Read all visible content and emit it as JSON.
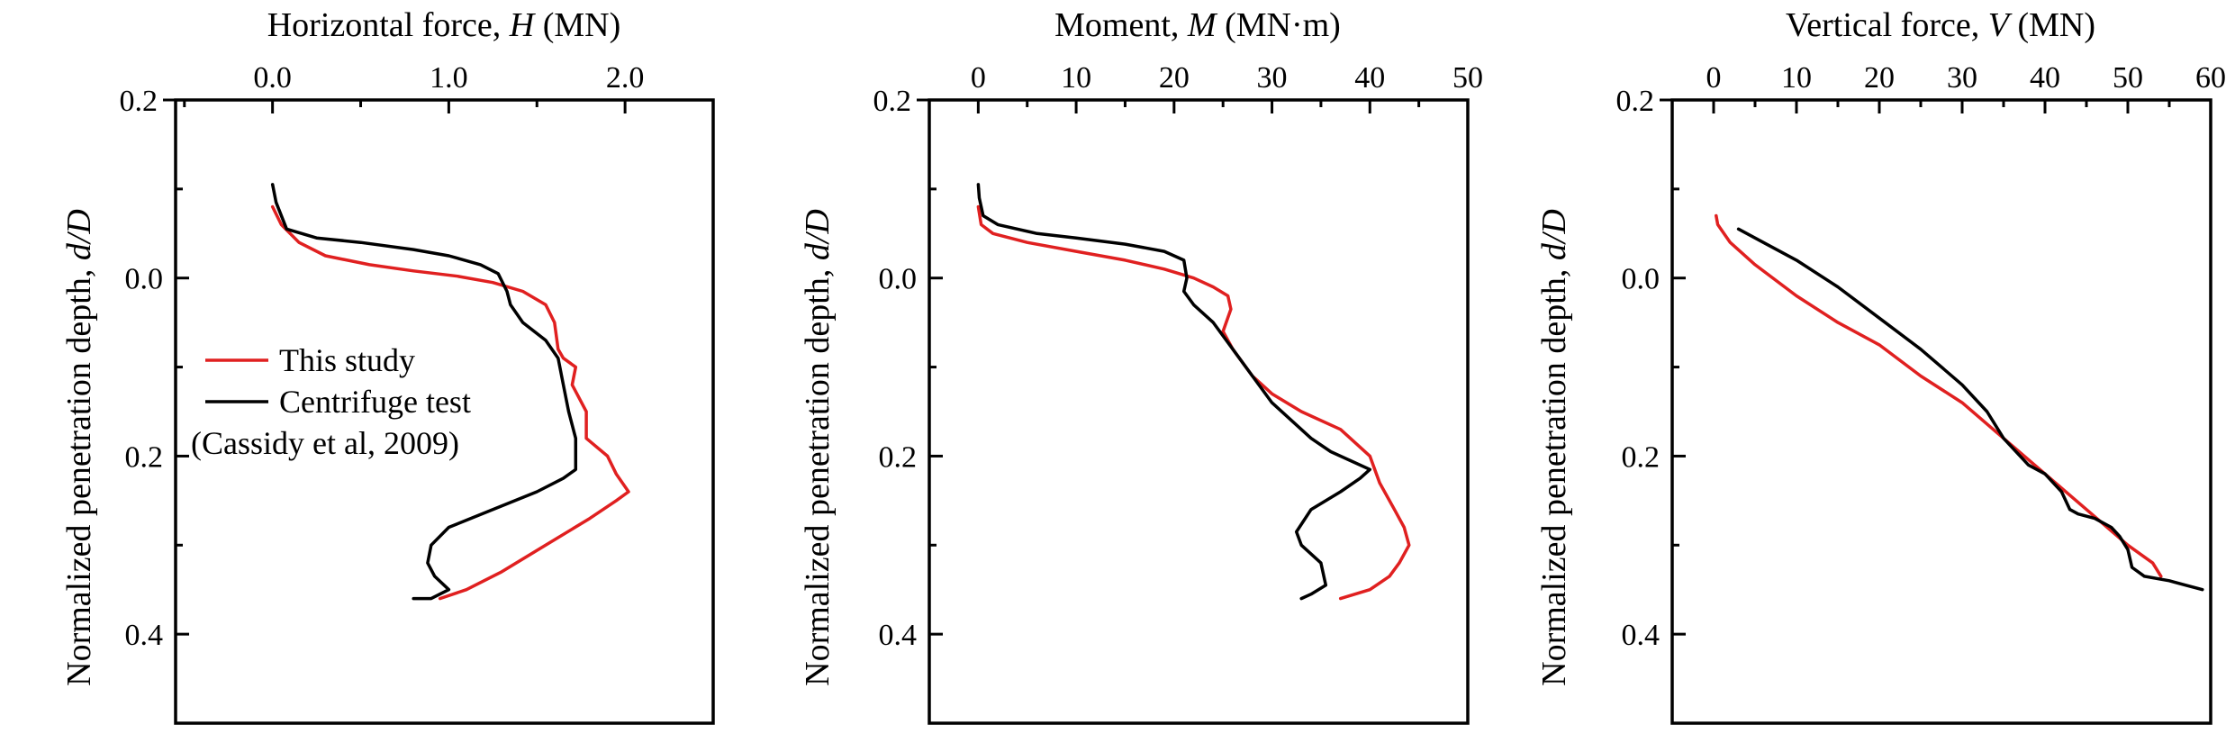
{
  "chart_data": [
    {
      "type": "line",
      "xlabel_prefix": "Horizontal force, ",
      "xlabel_var": "H",
      "xlabel_unit": " (MN)",
      "ylabel_prefix": "Normalized penetration depth, ",
      "ylabel_var": "d/D",
      "xlim": [
        -0.55,
        2.5
      ],
      "ylim": [
        -0.2,
        0.5
      ],
      "y_inverted": true,
      "x_ticks": [
        0.0,
        1.0,
        2.0
      ],
      "x_tick_labels": [
        "0.0",
        "1.0",
        "2.0"
      ],
      "x_minor_step": 0.5,
      "y_ticks": [
        -0.2,
        0.0,
        0.2,
        0.4
      ],
      "y_tick_labels": [
        "0.2",
        "0.0",
        "0.2",
        "0.4"
      ],
      "y_minor_step": 0.1,
      "legend": {
        "placement": "center-left",
        "entries": [
          "This study",
          "Centrifuge test",
          "(Cassidy et al, 2009)"
        ]
      },
      "series": [
        {
          "name": "This study",
          "color": "#e02020",
          "x": [
            0.0,
            0.05,
            0.15,
            0.3,
            0.55,
            0.8,
            1.05,
            1.25,
            1.42,
            1.55,
            1.6,
            1.62,
            1.65,
            1.72,
            1.7,
            1.78,
            1.78,
            1.9,
            1.95,
            2.02,
            1.95,
            1.8,
            1.55,
            1.3,
            1.1,
            0.95
          ],
          "y": [
            -0.08,
            -0.06,
            -0.04,
            -0.025,
            -0.015,
            -0.008,
            -0.002,
            0.005,
            0.015,
            0.03,
            0.05,
            0.08,
            0.09,
            0.1,
            0.12,
            0.15,
            0.18,
            0.2,
            0.22,
            0.24,
            0.25,
            0.27,
            0.3,
            0.33,
            0.35,
            0.36
          ]
        },
        {
          "name": "Centrifuge test",
          "color": "#000000",
          "x": [
            0.0,
            0.02,
            0.08,
            0.25,
            0.5,
            0.8,
            1.0,
            1.18,
            1.28,
            1.33,
            1.35,
            1.42,
            1.55,
            1.62,
            1.65,
            1.68,
            1.72,
            1.72,
            1.65,
            1.5,
            1.25,
            1.0,
            0.9,
            0.88,
            0.92,
            1.0,
            0.9,
            0.8
          ],
          "y": [
            -0.105,
            -0.085,
            -0.055,
            -0.045,
            -0.04,
            -0.032,
            -0.025,
            -0.015,
            -0.005,
            0.015,
            0.03,
            0.05,
            0.07,
            0.09,
            0.12,
            0.15,
            0.18,
            0.215,
            0.225,
            0.24,
            0.26,
            0.28,
            0.3,
            0.32,
            0.335,
            0.35,
            0.36,
            0.36
          ]
        }
      ]
    },
    {
      "type": "line",
      "xlabel_prefix": "Moment, ",
      "xlabel_var": "M",
      "xlabel_unit": " (MN·m)",
      "ylabel_prefix": "Normalized penetration depth, ",
      "ylabel_var": "d/D",
      "xlim": [
        -5,
        50
      ],
      "ylim": [
        -0.2,
        0.5
      ],
      "y_inverted": true,
      "x_ticks": [
        0,
        10,
        20,
        30,
        40,
        50
      ],
      "x_tick_labels": [
        "0",
        "10",
        "20",
        "30",
        "40",
        "50"
      ],
      "x_minor_step": 5,
      "y_ticks": [
        -0.2,
        0.0,
        0.2,
        0.4
      ],
      "y_tick_labels": [
        "0.2",
        "0.0",
        "0.2",
        "0.4"
      ],
      "y_minor_step": 0.1,
      "series": [
        {
          "name": "This study",
          "color": "#e02020",
          "x": [
            0.0,
            0.3,
            1.5,
            5,
            10,
            15,
            19,
            22,
            24,
            25.5,
            25.8,
            25,
            26,
            28,
            30,
            33,
            37,
            40,
            41,
            42.5,
            43.5,
            44,
            43,
            42,
            40,
            37
          ],
          "y": [
            -0.08,
            -0.06,
            -0.05,
            -0.04,
            -0.03,
            -0.02,
            -0.01,
            0.0,
            0.01,
            0.02,
            0.035,
            0.06,
            0.08,
            0.11,
            0.13,
            0.15,
            0.17,
            0.2,
            0.23,
            0.26,
            0.28,
            0.3,
            0.32,
            0.335,
            0.35,
            0.36
          ]
        },
        {
          "name": "Centrifuge test",
          "color": "#000000",
          "x": [
            0.0,
            0.1,
            0.5,
            2,
            6,
            10,
            15,
            19,
            21,
            21.3,
            21,
            22,
            24,
            26,
            28,
            30,
            32,
            34,
            36,
            38,
            40,
            39,
            37,
            34,
            32.5,
            33,
            35,
            35.5,
            34,
            33
          ],
          "y": [
            -0.105,
            -0.09,
            -0.07,
            -0.06,
            -0.05,
            -0.045,
            -0.038,
            -0.03,
            -0.02,
            0.0,
            0.015,
            0.03,
            0.05,
            0.08,
            0.11,
            0.14,
            0.16,
            0.18,
            0.195,
            0.205,
            0.215,
            0.225,
            0.24,
            0.26,
            0.285,
            0.3,
            0.32,
            0.345,
            0.355,
            0.36
          ]
        }
      ]
    },
    {
      "type": "line",
      "xlabel_prefix": "Vertical force, ",
      "xlabel_var": "V",
      "xlabel_unit": " (MN)",
      "ylabel_prefix": "Normalized penetration depth, ",
      "ylabel_var": "d/D",
      "xlim": [
        -5,
        60
      ],
      "ylim": [
        -0.2,
        0.5
      ],
      "y_inverted": true,
      "x_ticks": [
        0,
        10,
        20,
        30,
        40,
        50,
        60
      ],
      "x_tick_labels": [
        "0",
        "10",
        "20",
        "30",
        "40",
        "50",
        "60"
      ],
      "x_minor_step": 5,
      "y_ticks": [
        -0.2,
        0.0,
        0.2,
        0.4
      ],
      "y_tick_labels": [
        "0.2",
        "0.0",
        "0.2",
        "0.4"
      ],
      "y_minor_step": 0.1,
      "series": [
        {
          "name": "This study",
          "color": "#e02020",
          "x": [
            0.3,
            0.5,
            2,
            5,
            10,
            15,
            20,
            25,
            30,
            35,
            40,
            45,
            50,
            53,
            54
          ],
          "y": [
            -0.07,
            -0.06,
            -0.04,
            -0.015,
            0.02,
            0.05,
            0.075,
            0.11,
            0.14,
            0.18,
            0.22,
            0.26,
            0.3,
            0.32,
            0.335
          ]
        },
        {
          "name": "Centrifuge test",
          "color": "#000000",
          "x": [
            3,
            6,
            10,
            15,
            20,
            25,
            30,
            33,
            35,
            37,
            38,
            40,
            42,
            43,
            44,
            46,
            48,
            49,
            50,
            50.5,
            52,
            55,
            57,
            59
          ],
          "y": [
            -0.055,
            -0.04,
            -0.02,
            0.01,
            0.045,
            0.08,
            0.12,
            0.15,
            0.18,
            0.2,
            0.21,
            0.22,
            0.24,
            0.26,
            0.265,
            0.27,
            0.28,
            0.29,
            0.305,
            0.325,
            0.335,
            0.34,
            0.345,
            0.35
          ]
        }
      ]
    }
  ]
}
